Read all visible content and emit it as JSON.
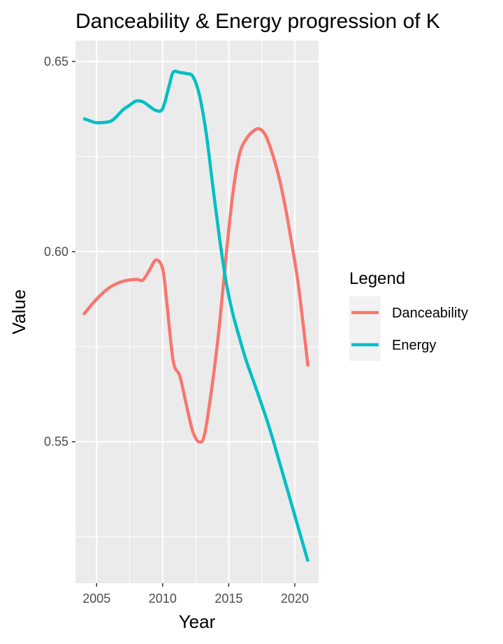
{
  "chart_data": {
    "type": "line",
    "title": "Danceability & Energy progression of K",
    "xlabel": "Year",
    "ylabel": "Value",
    "xlim": [
      2003.4,
      2021.8
    ],
    "ylim": [
      0.5128,
      0.6555
    ],
    "x_ticks": [
      2005,
      2010,
      2015,
      2020
    ],
    "x_tick_labels": [
      "2005",
      "2010",
      "2015",
      "2020"
    ],
    "y_ticks": [
      0.55,
      0.6,
      0.65
    ],
    "y_tick_labels": [
      "0.55",
      "0.60",
      "0.65"
    ],
    "legend": {
      "title": "Legend",
      "position": "right"
    },
    "series": [
      {
        "name": "Danceability",
        "color": "#F8766D",
        "points": [
          [
            2004,
            0.5834
          ],
          [
            2005,
            0.5875
          ],
          [
            2006,
            0.5906
          ],
          [
            2007,
            0.5922
          ],
          [
            2008,
            0.5927
          ],
          [
            2008.5,
            0.5925
          ],
          [
            2009,
            0.5951
          ],
          [
            2009.5,
            0.5978
          ],
          [
            2010,
            0.5955
          ],
          [
            2010.3,
            0.5871
          ],
          [
            2010.8,
            0.5712
          ],
          [
            2011.3,
            0.5673
          ],
          [
            2011.8,
            0.5596
          ],
          [
            2012.3,
            0.5525
          ],
          [
            2012.8,
            0.5499
          ],
          [
            2013.2,
            0.5524
          ],
          [
            2013.8,
            0.5662
          ],
          [
            2014.3,
            0.5808
          ],
          [
            2014.8,
            0.5988
          ],
          [
            2015.3,
            0.6149
          ],
          [
            2015.8,
            0.6254
          ],
          [
            2016.3,
            0.6295
          ],
          [
            2016.8,
            0.6315
          ],
          [
            2017.3,
            0.6323
          ],
          [
            2017.8,
            0.6305
          ],
          [
            2018.3,
            0.6258
          ],
          [
            2018.8,
            0.6196
          ],
          [
            2019.3,
            0.6114
          ],
          [
            2019.8,
            0.6015
          ],
          [
            2020.3,
            0.5905
          ],
          [
            2021,
            0.5698
          ]
        ]
      },
      {
        "name": "Energy",
        "color": "#00BFC4",
        "points": [
          [
            2004,
            0.635
          ],
          [
            2004.5,
            0.6344
          ],
          [
            2005,
            0.6339
          ],
          [
            2006,
            0.6342
          ],
          [
            2006.5,
            0.6355
          ],
          [
            2007,
            0.6373
          ],
          [
            2007.5,
            0.6385
          ],
          [
            2008,
            0.6396
          ],
          [
            2008.5,
            0.6394
          ],
          [
            2009,
            0.6382
          ],
          [
            2009.5,
            0.6371
          ],
          [
            2010,
            0.6376
          ],
          [
            2010.5,
            0.6437
          ],
          [
            2010.8,
            0.6472
          ],
          [
            2011.3,
            0.6471
          ],
          [
            2011.8,
            0.6468
          ],
          [
            2012.3,
            0.646
          ],
          [
            2012.8,
            0.6409
          ],
          [
            2013.3,
            0.631
          ],
          [
            2013.8,
            0.6171
          ],
          [
            2014.3,
            0.6036
          ],
          [
            2014.8,
            0.5921
          ],
          [
            2015.3,
            0.5838
          ],
          [
            2015.8,
            0.5775
          ],
          [
            2016.3,
            0.5716
          ],
          [
            2017,
            0.5647
          ],
          [
            2018,
            0.5545
          ],
          [
            2019,
            0.5427
          ],
          [
            2020,
            0.5306
          ],
          [
            2021,
            0.5185
          ]
        ]
      }
    ]
  }
}
